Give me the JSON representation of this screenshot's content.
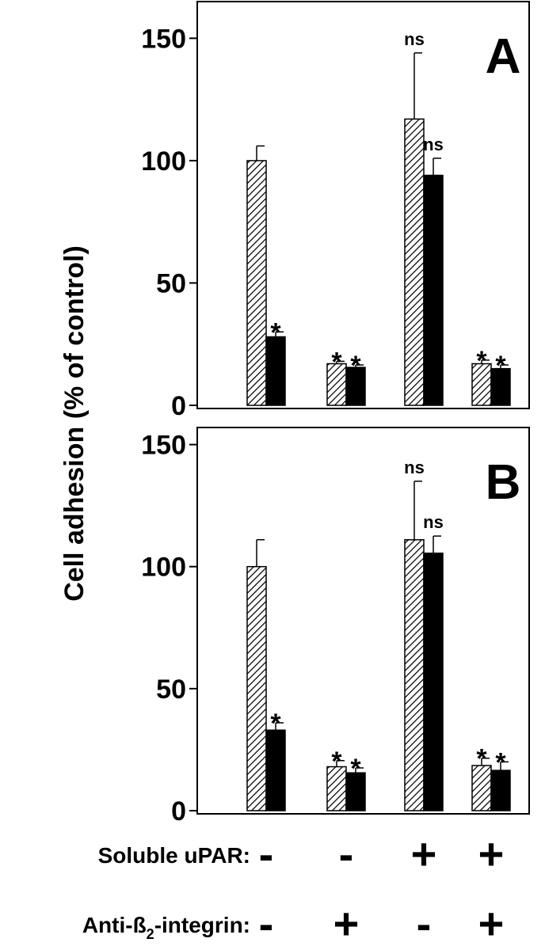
{
  "chart_data": [
    {
      "type": "bar",
      "panel_label": "A",
      "ylim": [
        0,
        165
      ],
      "yticks": [
        0,
        50,
        100,
        150
      ],
      "series": [
        {
          "color": "#000000",
          "pattern": "hatch",
          "values": [
            100,
            17,
            117,
            17
          ],
          "errors": [
            6,
            1,
            27,
            1.5
          ],
          "annotations": [
            null,
            "*",
            "ns",
            "*"
          ]
        },
        {
          "color": "#000000",
          "pattern": "solid",
          "values": [
            28,
            15.5,
            94,
            15
          ],
          "errors": [
            2,
            1,
            7,
            1.5
          ],
          "annotations": [
            "*",
            "*",
            "ns",
            "*"
          ]
        }
      ]
    },
    {
      "type": "bar",
      "panel_label": "B",
      "ylim": [
        0,
        157
      ],
      "yticks": [
        0,
        50,
        100,
        150
      ],
      "series": [
        {
          "color": "#000000",
          "pattern": "hatch",
          "values": [
            100,
            18,
            111,
            18.5
          ],
          "errors": [
            11,
            2.5,
            24,
            3
          ],
          "annotations": [
            null,
            "*",
            "ns",
            "*"
          ]
        },
        {
          "color": "#000000",
          "pattern": "solid",
          "values": [
            33,
            15.5,
            105.5,
            16.5
          ],
          "errors": [
            3,
            2,
            7,
            3.5
          ],
          "annotations": [
            "*",
            "*",
            "ns",
            "*"
          ]
        }
      ]
    }
  ],
  "y_label": "Cell adhesion (% of control)",
  "factors": [
    {
      "label": [
        "Soluble uPAR:"
      ],
      "signs": [
        "-",
        "-",
        "+",
        "+"
      ]
    },
    {
      "label": [
        "Anti-ß",
        "2",
        "-integrin:"
      ],
      "signs": [
        "-",
        "+",
        "-",
        "+"
      ]
    }
  ]
}
